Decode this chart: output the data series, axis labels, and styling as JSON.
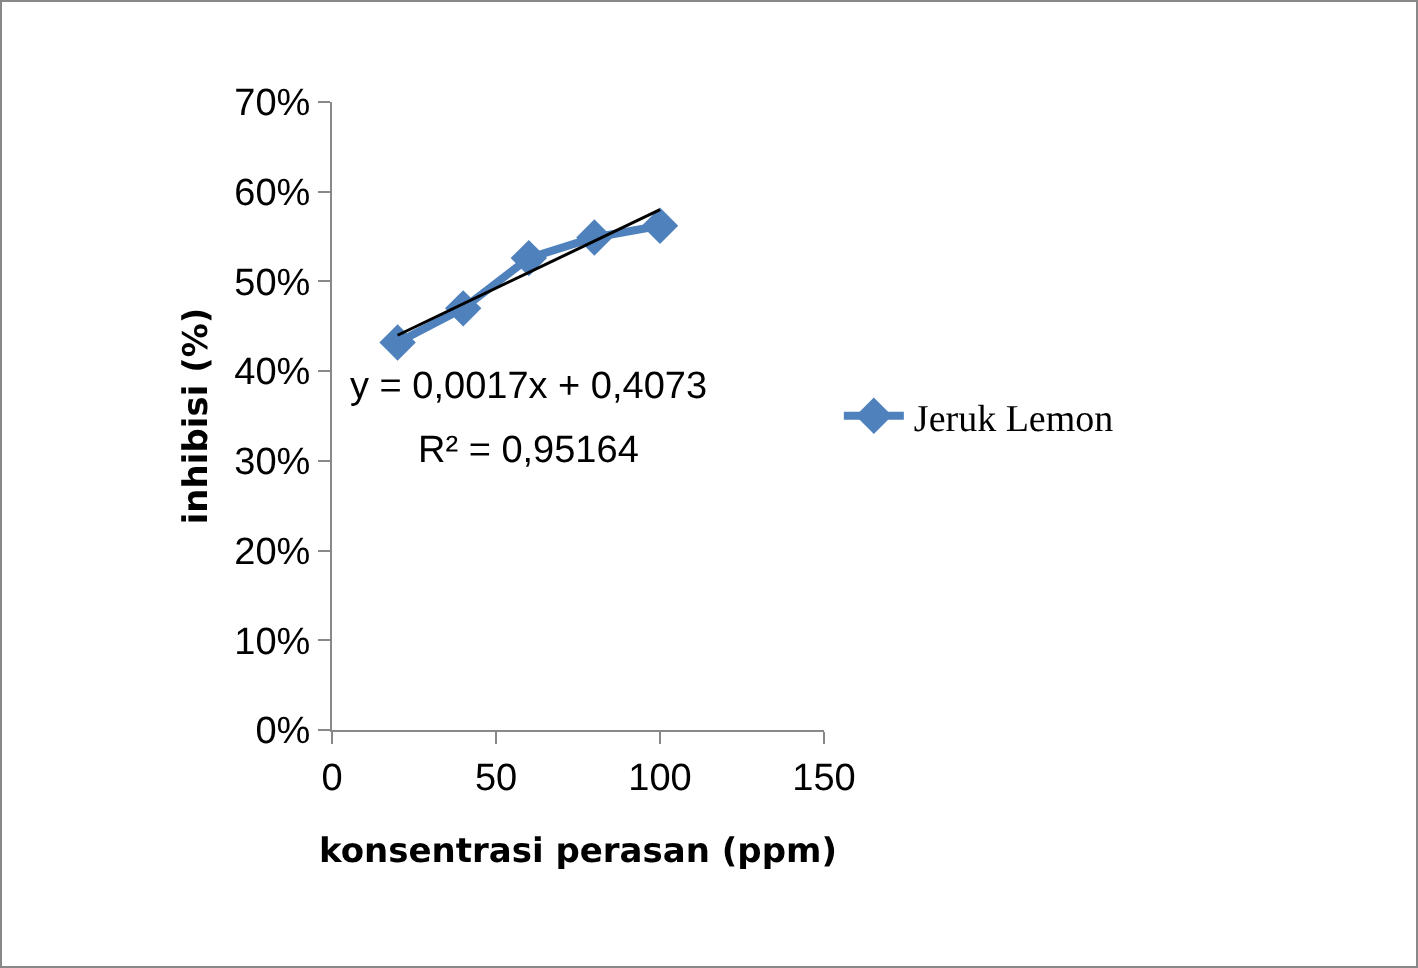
{
  "chart_data": {
    "type": "line",
    "xlabel": "konsentrasi perasan (ppm)",
    "ylabel": "inhibisi (%)",
    "x": [
      20,
      40,
      60,
      80,
      100
    ],
    "series": [
      {
        "name": "Jeruk Lemon",
        "color": "#4f81bd",
        "values": [
          0.432,
          0.47,
          0.526,
          0.549,
          0.562
        ],
        "marker": "diamond"
      },
      {
        "type": "line",
        "color": "#000000",
        "x": [
          20,
          100
        ],
        "values": [
          0.44,
          0.58
        ],
        "marker": "none"
      }
    ],
    "annotations": [
      "y = 0,0017x + 0,4073",
      "R² = 0,95164"
    ],
    "xlim": [
      0,
      150
    ],
    "xticks": [
      0,
      50,
      100,
      150
    ],
    "ylim": [
      0,
      0.7
    ],
    "yticks": [
      {
        "value": 0,
        "label": "0%"
      },
      {
        "value": 0.1,
        "label": "10%"
      },
      {
        "value": 0.2,
        "label": "20%"
      },
      {
        "value": 0.3,
        "label": "30%"
      },
      {
        "value": 0.4,
        "label": "40%"
      },
      {
        "value": 0.5,
        "label": "50%"
      },
      {
        "value": 0.6,
        "label": "60%"
      },
      {
        "value": 0.7,
        "label": "70%"
      }
    ],
    "grid": false,
    "legend": "right"
  }
}
